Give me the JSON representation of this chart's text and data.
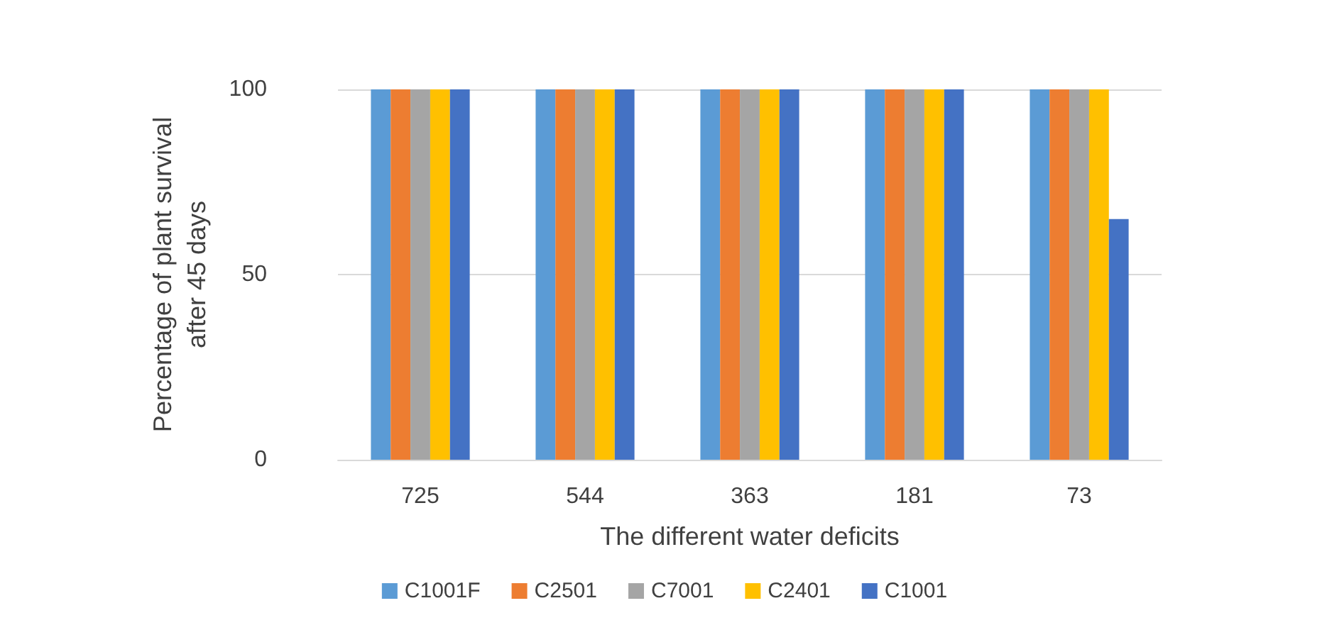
{
  "chart_data": {
    "type": "bar",
    "xlabel": "The different water deficits",
    "ylabel": "Percentage of plant survival\nafter 45 days",
    "categories": [
      "725",
      "544",
      "363",
      "181",
      "73"
    ],
    "series": [
      {
        "name": "C1001F",
        "color": "#5b9bd5",
        "values": [
          100,
          100,
          100,
          100,
          100
        ]
      },
      {
        "name": "C2501",
        "color": "#ed7d31",
        "values": [
          100,
          100,
          100,
          100,
          100
        ]
      },
      {
        "name": "C7001",
        "color": "#a5a5a5",
        "values": [
          100,
          100,
          100,
          100,
          100
        ]
      },
      {
        "name": "C2401",
        "color": "#ffc000",
        "values": [
          100,
          100,
          100,
          100,
          100
        ]
      },
      {
        "name": "C1001",
        "color": "#4472c4",
        "values": [
          100,
          100,
          100,
          100,
          65
        ]
      }
    ],
    "ylim": [
      0,
      100
    ],
    "yticks": [
      0,
      50,
      100
    ],
    "grid": "y",
    "legend": "bottom"
  }
}
